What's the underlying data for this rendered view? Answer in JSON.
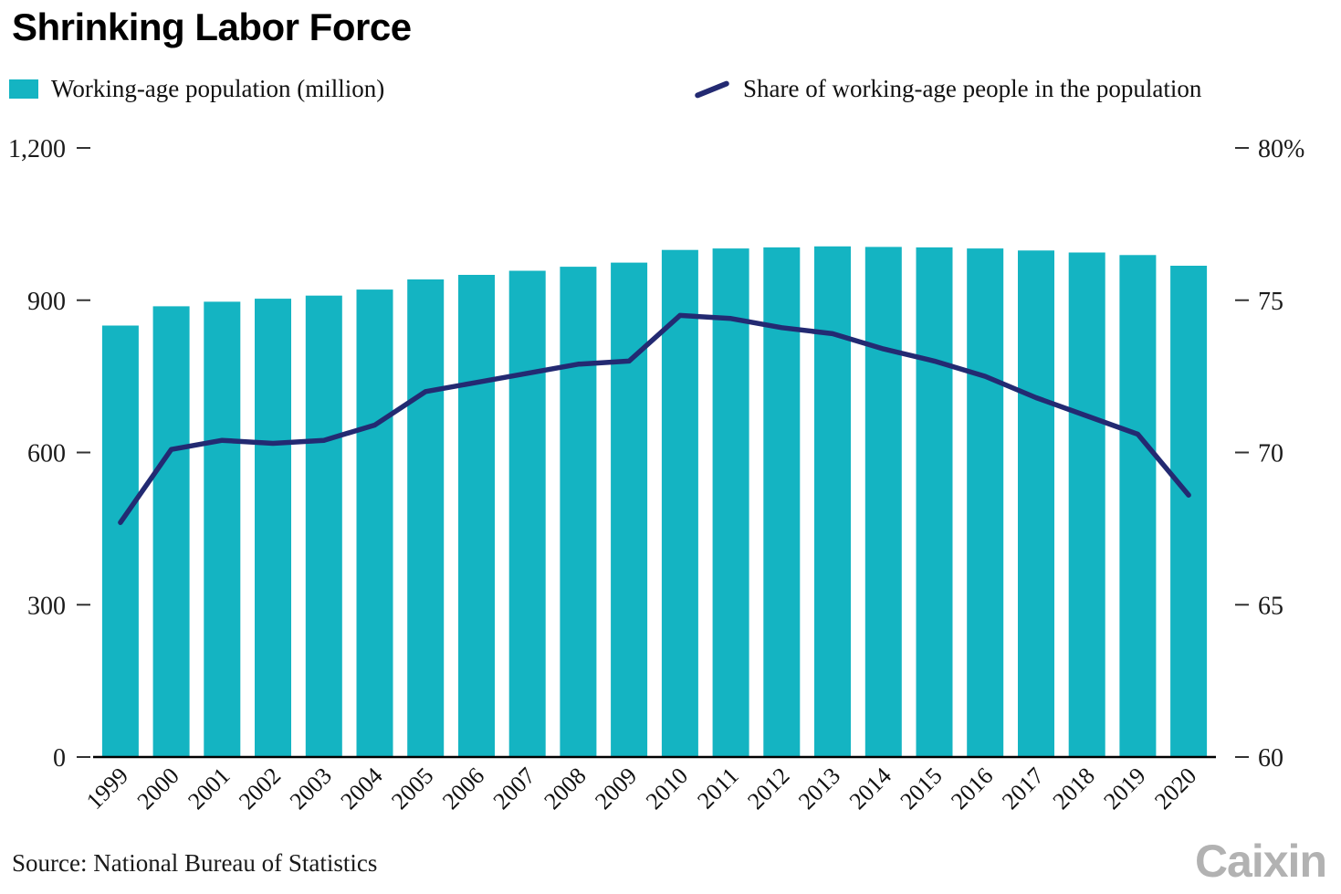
{
  "title": "Shrinking Labor Force",
  "legend": {
    "bar_label": "Working-age population (million)",
    "line_label": "Share of working-age people in the population"
  },
  "source": "Source: National Bureau of Statistics",
  "logo": "Caixin",
  "colors": {
    "bar": "#14b4c2",
    "line": "#232a72",
    "text": "#1a1a1a",
    "logo": "#b2b2b2"
  },
  "chart_data": {
    "type": "bar",
    "subtype": "bar+line dual axis",
    "title": "Shrinking Labor Force",
    "categories": [
      "1999",
      "2000",
      "2001",
      "2002",
      "2003",
      "2004",
      "2005",
      "2006",
      "2007",
      "2008",
      "2009",
      "2010",
      "2011",
      "2012",
      "2013",
      "2014",
      "2015",
      "2016",
      "2017",
      "2018",
      "2019",
      "2020"
    ],
    "series": [
      {
        "name": "Working-age population (million)",
        "type": "bar",
        "axis": "left",
        "color": "#14b4c2",
        "values": [
          850,
          888,
          897,
          903,
          909,
          921,
          941,
          950,
          958,
          966,
          974,
          999,
          1002,
          1004,
          1006,
          1005,
          1004,
          1002,
          998,
          994,
          989,
          968
        ]
      },
      {
        "name": "Share of working-age people in the population",
        "type": "line",
        "axis": "right",
        "color": "#232a72",
        "values": [
          67.7,
          70.1,
          70.4,
          70.3,
          70.4,
          70.9,
          72.0,
          72.3,
          72.6,
          72.9,
          73.0,
          74.5,
          74.4,
          74.1,
          73.9,
          73.4,
          73.0,
          72.5,
          71.8,
          71.2,
          70.6,
          68.6
        ]
      }
    ],
    "left_axis": {
      "label": "Working-age population (million)",
      "min": 0,
      "max": 1200,
      "ticks": [
        0,
        300,
        600,
        900,
        1200
      ],
      "tick_labels": [
        "0",
        "300",
        "600",
        "900",
        "1,200"
      ]
    },
    "right_axis": {
      "label": "Share of working-age people in the population (%)",
      "min": 60,
      "max": 80,
      "ticks": [
        60,
        65,
        70,
        75,
        80
      ],
      "tick_labels": [
        "60",
        "65",
        "70",
        "75",
        "80%"
      ]
    },
    "grid": false,
    "legend_position": "top"
  }
}
